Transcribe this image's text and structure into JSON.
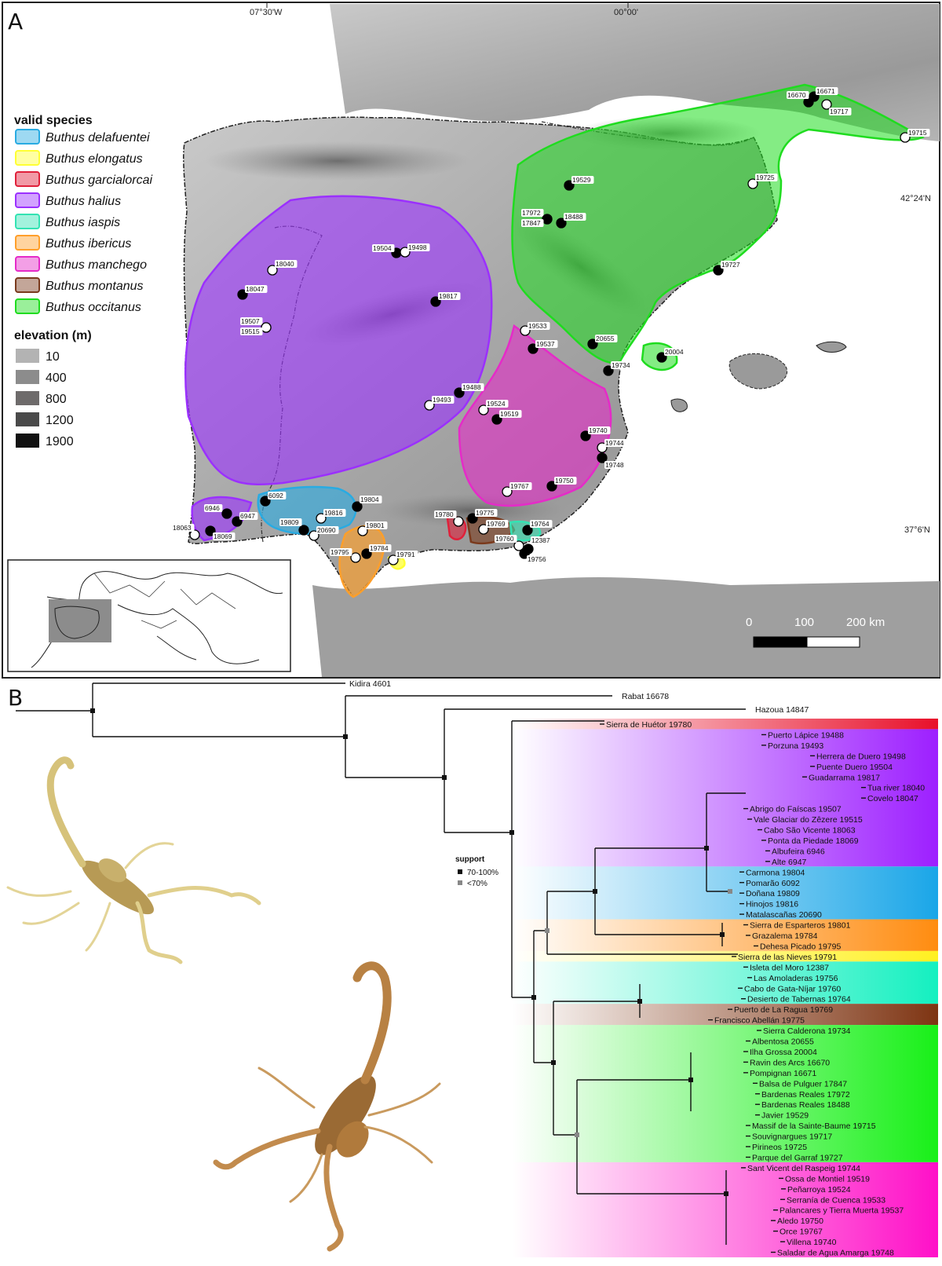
{
  "panel_a": {
    "letter": "A",
    "coords": {
      "lon_left": "07°30'W",
      "lon_right": "00°00'",
      "lat_top": "42°24'N",
      "lat_bottom": "37°6'N"
    },
    "legend": {
      "species_title": "valid species",
      "species": [
        {
          "name": "Buthus delafuentei",
          "color": "#29abe2"
        },
        {
          "name": "Buthus elongatus",
          "color": "#ffff33"
        },
        {
          "name": "Buthus garcialorcai",
          "color": "#e0203a"
        },
        {
          "name": "Buthus halius",
          "color": "#9b30ff"
        },
        {
          "name": "Buthus iaspis",
          "color": "#33e3b3"
        },
        {
          "name": "Buthus ibericus",
          "color": "#ff9f2a"
        },
        {
          "name": "Buthus manchego",
          "color": "#e52bc8"
        },
        {
          "name": "Buthus montanus",
          "color": "#7a3a1d"
        },
        {
          "name": "Buthus occitanus",
          "color": "#1fdc1f"
        }
      ],
      "elevation_title": "elevation (m)",
      "elevations": [
        {
          "value": "10",
          "color": "#b3b3b3"
        },
        {
          "value": "400",
          "color": "#8c8c8c"
        },
        {
          "value": "800",
          "color": "#6e6b6b"
        },
        {
          "value": "1200",
          "color": "#4a4a4a"
        },
        {
          "value": "1900",
          "color": "#111111"
        }
      ]
    },
    "scale_bar": {
      "labels": [
        "0",
        "100",
        "200 km"
      ]
    },
    "sites": [
      {
        "id": "16670",
        "fill": "black"
      },
      {
        "id": "16671",
        "fill": "black"
      },
      {
        "id": "19717",
        "fill": "white"
      },
      {
        "id": "19715",
        "fill": "white"
      },
      {
        "id": "19529",
        "fill": "black"
      },
      {
        "id": "19725",
        "fill": "white"
      },
      {
        "id": "17972",
        "fill": "black"
      },
      {
        "id": "17847",
        "fill": "black"
      },
      {
        "id": "18488",
        "fill": "black"
      },
      {
        "id": "19727",
        "fill": "black"
      },
      {
        "id": "19504",
        "fill": "black"
      },
      {
        "id": "19498",
        "fill": "white"
      },
      {
        "id": "18040",
        "fill": "white"
      },
      {
        "id": "18047",
        "fill": "black"
      },
      {
        "id": "19817",
        "fill": "black"
      },
      {
        "id": "19507",
        "fill": "white"
      },
      {
        "id": "19515",
        "fill": "white"
      },
      {
        "id": "19533",
        "fill": "white"
      },
      {
        "id": "19537",
        "fill": "black"
      },
      {
        "id": "20655",
        "fill": "black"
      },
      {
        "id": "20004",
        "fill": "black"
      },
      {
        "id": "19734",
        "fill": "black"
      },
      {
        "id": "19488",
        "fill": "black"
      },
      {
        "id": "19493",
        "fill": "white"
      },
      {
        "id": "19524",
        "fill": "white"
      },
      {
        "id": "19519",
        "fill": "black"
      },
      {
        "id": "19740",
        "fill": "black"
      },
      {
        "id": "19744",
        "fill": "white"
      },
      {
        "id": "19748",
        "fill": "black"
      },
      {
        "id": "19767",
        "fill": "white"
      },
      {
        "id": "19750",
        "fill": "black"
      },
      {
        "id": "6092",
        "fill": "black"
      },
      {
        "id": "19804",
        "fill": "black"
      },
      {
        "id": "6946",
        "fill": "black"
      },
      {
        "id": "6947",
        "fill": "black"
      },
      {
        "id": "19816",
        "fill": "white"
      },
      {
        "id": "18063",
        "fill": "white"
      },
      {
        "id": "18069",
        "fill": "black"
      },
      {
        "id": "19809",
        "fill": "black"
      },
      {
        "id": "20690",
        "fill": "white"
      },
      {
        "id": "19801",
        "fill": "white"
      },
      {
        "id": "19795",
        "fill": "white"
      },
      {
        "id": "19784",
        "fill": "black"
      },
      {
        "id": "19791",
        "fill": "white"
      },
      {
        "id": "19780",
        "fill": "white"
      },
      {
        "id": "19775",
        "fill": "black"
      },
      {
        "id": "19769",
        "fill": "white"
      },
      {
        "id": "19764",
        "fill": "black"
      },
      {
        "id": "19760",
        "fill": "white"
      },
      {
        "id": "12387",
        "fill": "black"
      },
      {
        "id": "19756",
        "fill": "black"
      }
    ]
  },
  "panel_b": {
    "letter": "B",
    "outgroups": [
      "Kidira 4601",
      "Rabat 16678",
      "Hazoua 14847"
    ],
    "support_legend": {
      "title": "support",
      "high": "70-100%",
      "low": "<70%"
    },
    "clades": [
      {
        "color": "#e8102a",
        "tips": [
          "Sierra de Huétor 19780"
        ]
      },
      {
        "color": "#9d1fff",
        "tips": [
          "Puerto Lápice 19488",
          "Porzuna 19493",
          "Herrera de Duero 19498",
          "Puente Duero 19504",
          "Guadarrama 19817",
          "Tua river 18040",
          "Covelo 18047",
          "Abrigo do Faíscas 19507",
          "Vale Glaciar do Zêzere 19515",
          "Cabo São Vicente 18063",
          "Ponta da Piedade 18069",
          "Albufeira 6946",
          "Alte 6947"
        ]
      },
      {
        "color": "#1aa6e8",
        "tips": [
          "Carmona 19804",
          "Pomarão 6092",
          "Doñana 19809",
          "Hinojos 19816",
          "Matalascañas 20690"
        ]
      },
      {
        "color": "#ff8c10",
        "tips": [
          "Sierra de Esparteros 19801",
          "Grazalema 19784",
          "Dehesa Picado 19795"
        ]
      },
      {
        "color": "#fff020",
        "tips": [
          "Sierra de las Nieves 19791"
        ]
      },
      {
        "color": "#14f0c0",
        "tips": [
          "Isleta del Moro 12387",
          "Las Amoladeras 19756",
          "Cabo de Gata-Níjar 19760",
          "Desierto de Tabernas 19764"
        ]
      },
      {
        "color": "#7e3412",
        "tips": [
          "Puerto de La Ragua 19769",
          "Francisco Abellán 19775"
        ]
      },
      {
        "color": "#18f018",
        "tips": [
          "Sierra Calderona 19734",
          "Albentosa 20655",
          "Ilha Grossa 20004",
          "Ravin des Arcs 16670",
          "Pompignan 16671",
          "Balsa de Pulguer 17847",
          "Bardenas Reales 17972",
          "Bardenas Reales 18488",
          "Javier 19529",
          "Massif de la Sainte-Baume 19715",
          "Souvignargues 19717",
          "Pirineos 19725",
          "Parque del Garraf 19727"
        ]
      },
      {
        "color": "#ff10c8",
        "tips": [
          "Sant Vicent del Raspeig 19744",
          "Ossa de Montiel 19519",
          "Peñarroya 19524",
          "Serranía de Cuenca 19533",
          "Palancares y Tierra Muerta 19537",
          "Aledo 19750",
          "Orce 19767",
          "Villena 19740",
          "Saladar de Agua Amarga 19748"
        ]
      }
    ]
  }
}
